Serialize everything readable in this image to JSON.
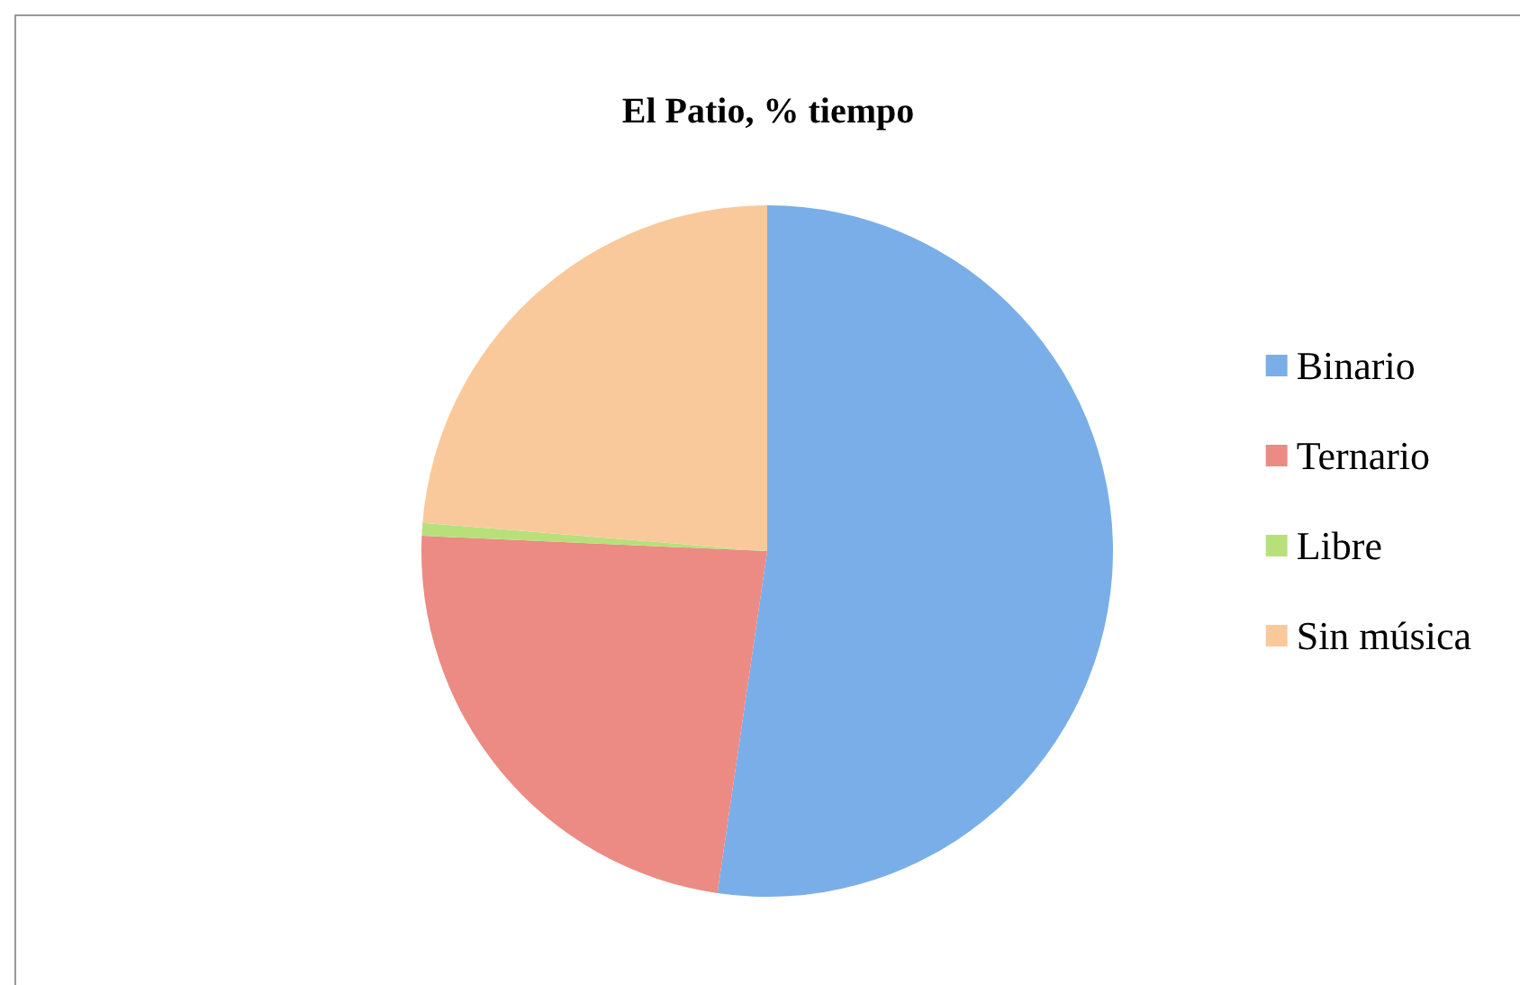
{
  "chart_data": {
    "type": "pie",
    "title": "El Patio, % tiempo",
    "categories": [
      "Binario",
      "Ternario",
      "Libre",
      "Sin música"
    ],
    "values": [
      52.3,
      23.4,
      0.6,
      23.7
    ],
    "colors": [
      "#7aaee8",
      "#ec8a84",
      "#b8e07a",
      "#f9c99c"
    ],
    "legend": "right"
  }
}
